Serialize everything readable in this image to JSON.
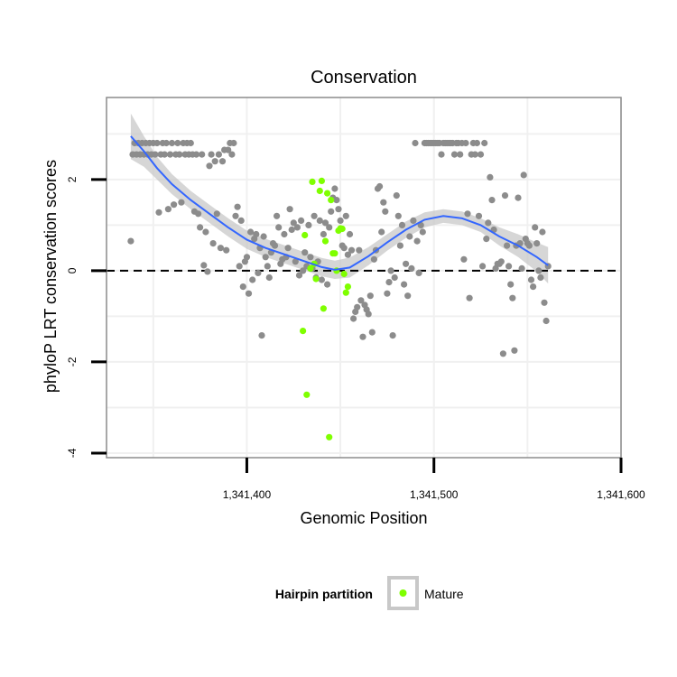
{
  "chart_data": {
    "type": "scatter",
    "title": "Conservation",
    "xlabel": "Genomic Position",
    "ylabel": "phyloP LRT conservation scores",
    "xlim": [
      1341325,
      1341600
    ],
    "ylim": [
      -4.1,
      3.8
    ],
    "x_ticks": [
      1341400,
      1341500,
      1341600
    ],
    "x_tick_labels": [
      "1,341,400",
      "1,341,500",
      "1,341,600"
    ],
    "y_ticks": [
      -4,
      -2,
      0,
      2
    ],
    "y_tick_labels": [
      "-4",
      "-2",
      "0",
      "2"
    ],
    "grid": true,
    "reference_line": {
      "y": 0,
      "style": "dashed"
    },
    "colors": {
      "other": "#8c8c8c",
      "mature": "#7fff00",
      "smooth": "#3366ff",
      "band": "#c8c8c8",
      "grid": "#f0f0f0",
      "panel_border": "#8c8c8c"
    },
    "legend": {
      "title": "Hairpin partition",
      "position": "bottom",
      "entries": [
        {
          "label": "Mature",
          "color": "#7fff00"
        }
      ]
    },
    "series": [
      {
        "group": "other",
        "points": [
          [
            1341338,
            0.65
          ],
          [
            1341339,
            2.55
          ],
          [
            1341340,
            2.8
          ],
          [
            1341341,
            2.55
          ],
          [
            1341342,
            2.8
          ],
          [
            1341343,
            2.55
          ],
          [
            1341344,
            2.8
          ],
          [
            1341345,
            2.55
          ],
          [
            1341346,
            2.8
          ],
          [
            1341347,
            2.55
          ],
          [
            1341348,
            2.8
          ],
          [
            1341349,
            2.55
          ],
          [
            1341350,
            2.8
          ],
          [
            1341351,
            2.55
          ],
          [
            1341352,
            2.8
          ],
          [
            1341353,
            1.28
          ],
          [
            1341354,
            2.55
          ],
          [
            1341355,
            2.8
          ],
          [
            1341356,
            2.55
          ],
          [
            1341357,
            2.8
          ],
          [
            1341358,
            1.35
          ],
          [
            1341359,
            2.55
          ],
          [
            1341360,
            2.8
          ],
          [
            1341361,
            1.45
          ],
          [
            1341362,
            2.55
          ],
          [
            1341363,
            2.8
          ],
          [
            1341364,
            2.55
          ],
          [
            1341365,
            1.5
          ],
          [
            1341366,
            2.8
          ],
          [
            1341367,
            2.55
          ],
          [
            1341368,
            2.8
          ],
          [
            1341369,
            2.55
          ],
          [
            1341370,
            2.8
          ],
          [
            1341371,
            2.55
          ],
          [
            1341372,
            1.3
          ],
          [
            1341373,
            2.55
          ],
          [
            1341374,
            1.25
          ],
          [
            1341375,
            0.95
          ],
          [
            1341376,
            2.55
          ],
          [
            1341377,
            0.12
          ],
          [
            1341378,
            0.85
          ],
          [
            1341379,
            -0.02
          ],
          [
            1341380,
            2.3
          ],
          [
            1341381,
            2.55
          ],
          [
            1341382,
            0.6
          ],
          [
            1341383,
            2.4
          ],
          [
            1341384,
            1.25
          ],
          [
            1341385,
            2.55
          ],
          [
            1341386,
            0.5
          ],
          [
            1341387,
            2.4
          ],
          [
            1341388,
            2.65
          ],
          [
            1341389,
            0.45
          ],
          [
            1341390,
            2.65
          ],
          [
            1341391,
            2.8
          ],
          [
            1341392,
            2.55
          ],
          [
            1341393,
            2.8
          ],
          [
            1341394,
            1.2
          ],
          [
            1341395,
            1.4
          ],
          [
            1341396,
            0.1
          ],
          [
            1341397,
            1.1
          ],
          [
            1341398,
            -0.35
          ],
          [
            1341399,
            0.2
          ],
          [
            1341400,
            0.3
          ],
          [
            1341401,
            -0.5
          ],
          [
            1341402,
            0.85
          ],
          [
            1341403,
            -0.2
          ],
          [
            1341404,
            0.7
          ],
          [
            1341405,
            0.8
          ],
          [
            1341406,
            -0.05
          ],
          [
            1341407,
            0.5
          ],
          [
            1341408,
            -1.42
          ],
          [
            1341409,
            0.75
          ],
          [
            1341410,
            0.3
          ],
          [
            1341411,
            0.1
          ],
          [
            1341412,
            -0.15
          ],
          [
            1341413,
            0.4
          ],
          [
            1341414,
            0.6
          ],
          [
            1341415,
            0.55
          ],
          [
            1341416,
            1.2
          ],
          [
            1341417,
            0.95
          ],
          [
            1341418,
            0.15
          ],
          [
            1341419,
            0.25
          ],
          [
            1341420,
            0.8
          ],
          [
            1341421,
            0.3
          ],
          [
            1341422,
            0.5
          ],
          [
            1341423,
            1.35
          ],
          [
            1341424,
            0.9
          ],
          [
            1341425,
            1.05
          ],
          [
            1341426,
            0.2
          ],
          [
            1341427,
            0.95
          ],
          [
            1341428,
            -0.1
          ],
          [
            1341429,
            1.1
          ],
          [
            1341430,
            0.0
          ],
          [
            1341431,
            0.4
          ],
          [
            1341432,
            0.1
          ],
          [
            1341433,
            1.0
          ],
          [
            1341434,
            0.3
          ],
          [
            1341435,
            0.05
          ],
          [
            1341436,
            1.2
          ],
          [
            1341437,
            -0.15
          ],
          [
            1341438,
            0.2
          ],
          [
            1341439,
            1.1
          ],
          [
            1341440,
            -0.2
          ],
          [
            1341441,
            0.8
          ],
          [
            1341442,
            1.05
          ],
          [
            1341443,
            -0.3
          ],
          [
            1341444,
            0.95
          ],
          [
            1341445,
            1.3
          ],
          [
            1341446,
            1.6
          ],
          [
            1341447,
            1.8
          ],
          [
            1341448,
            1.55
          ],
          [
            1341449,
            1.35
          ],
          [
            1341450,
            1.1
          ],
          [
            1341451,
            0.55
          ],
          [
            1341452,
            0.5
          ],
          [
            1341453,
            1.2
          ],
          [
            1341454,
            0.35
          ],
          [
            1341455,
            0.8
          ],
          [
            1341456,
            0.45
          ],
          [
            1341457,
            -1.05
          ],
          [
            1341458,
            -0.9
          ],
          [
            1341459,
            -0.8
          ],
          [
            1341460,
            0.45
          ],
          [
            1341461,
            -0.65
          ],
          [
            1341462,
            -1.45
          ],
          [
            1341463,
            -0.75
          ],
          [
            1341464,
            -0.85
          ],
          [
            1341465,
            -0.95
          ],
          [
            1341466,
            -0.55
          ],
          [
            1341467,
            -1.35
          ],
          [
            1341468,
            0.25
          ],
          [
            1341469,
            0.45
          ],
          [
            1341470,
            1.8
          ],
          [
            1341471,
            1.85
          ],
          [
            1341472,
            0.85
          ],
          [
            1341473,
            1.5
          ],
          [
            1341474,
            1.3
          ],
          [
            1341475,
            -0.5
          ],
          [
            1341476,
            -0.25
          ],
          [
            1341477,
            0.0
          ],
          [
            1341478,
            -1.42
          ],
          [
            1341479,
            -0.15
          ],
          [
            1341480,
            1.65
          ],
          [
            1341481,
            1.2
          ],
          [
            1341482,
            0.55
          ],
          [
            1341483,
            1.0
          ],
          [
            1341484,
            -0.3
          ],
          [
            1341485,
            0.15
          ],
          [
            1341486,
            -0.55
          ],
          [
            1341487,
            0.75
          ],
          [
            1341488,
            0.05
          ],
          [
            1341489,
            1.1
          ],
          [
            1341490,
            2.8
          ],
          [
            1341491,
            0.65
          ],
          [
            1341492,
            -0.05
          ],
          [
            1341493,
            1.0
          ],
          [
            1341494,
            0.85
          ],
          [
            1341495,
            2.8
          ],
          [
            1341496,
            2.8
          ],
          [
            1341497,
            2.8
          ],
          [
            1341498,
            2.8
          ],
          [
            1341499,
            2.8
          ],
          [
            1341500,
            2.8
          ],
          [
            1341501,
            2.8
          ],
          [
            1341502,
            2.8
          ],
          [
            1341503,
            2.8
          ],
          [
            1341504,
            2.55
          ],
          [
            1341505,
            2.8
          ],
          [
            1341506,
            2.8
          ],
          [
            1341507,
            2.8
          ],
          [
            1341508,
            2.8
          ],
          [
            1341509,
            2.8
          ],
          [
            1341510,
            2.8
          ],
          [
            1341511,
            2.55
          ],
          [
            1341512,
            2.8
          ],
          [
            1341513,
            2.8
          ],
          [
            1341514,
            2.55
          ],
          [
            1341515,
            2.8
          ],
          [
            1341516,
            0.25
          ],
          [
            1341517,
            2.8
          ],
          [
            1341518,
            1.25
          ],
          [
            1341519,
            -0.6
          ],
          [
            1341520,
            2.55
          ],
          [
            1341521,
            2.8
          ],
          [
            1341522,
            2.55
          ],
          [
            1341523,
            2.8
          ],
          [
            1341524,
            1.2
          ],
          [
            1341525,
            2.55
          ],
          [
            1341526,
            0.1
          ],
          [
            1341527,
            2.8
          ],
          [
            1341528,
            0.7
          ],
          [
            1341529,
            1.05
          ],
          [
            1341530,
            2.05
          ],
          [
            1341531,
            1.55
          ],
          [
            1341532,
            0.9
          ],
          [
            1341533,
            0.05
          ],
          [
            1341534,
            0.15
          ],
          [
            1341535,
            0.15
          ],
          [
            1341536,
            0.2
          ],
          [
            1341537,
            -1.82
          ],
          [
            1341538,
            1.65
          ],
          [
            1341539,
            0.55
          ],
          [
            1341540,
            0.1
          ],
          [
            1341541,
            -0.3
          ],
          [
            1341542,
            -0.6
          ],
          [
            1341543,
            -1.75
          ],
          [
            1341544,
            0.55
          ],
          [
            1341545,
            1.6
          ],
          [
            1341546,
            0.6
          ],
          [
            1341547,
            0.05
          ],
          [
            1341548,
            2.1
          ],
          [
            1341549,
            0.7
          ],
          [
            1341550,
            0.6
          ],
          [
            1341551,
            0.55
          ],
          [
            1341552,
            -0.2
          ],
          [
            1341553,
            -0.35
          ],
          [
            1341554,
            0.95
          ],
          [
            1341555,
            0.6
          ],
          [
            1341556,
            0.0
          ],
          [
            1341557,
            -0.15
          ],
          [
            1341558,
            0.85
          ],
          [
            1341559,
            -0.7
          ],
          [
            1341560,
            -1.1
          ],
          [
            1341561,
            0.1
          ]
        ]
      },
      {
        "group": "mature",
        "name": "Mature",
        "points": [
          [
            1341430,
            -1.32
          ],
          [
            1341431,
            0.78
          ],
          [
            1341432,
            -2.72
          ],
          [
            1341434,
            0.05
          ],
          [
            1341435,
            1.95
          ],
          [
            1341436,
            0.15
          ],
          [
            1341437,
            -0.18
          ],
          [
            1341439,
            1.75
          ],
          [
            1341440,
            1.97
          ],
          [
            1341441,
            -0.83
          ],
          [
            1341442,
            0.65
          ],
          [
            1341443,
            1.7
          ],
          [
            1341444,
            -3.65
          ],
          [
            1341445,
            1.55
          ],
          [
            1341446,
            0.38
          ],
          [
            1341447,
            0.38
          ],
          [
            1341448,
            0.0
          ],
          [
            1341449,
            0.88
          ],
          [
            1341450,
            0.93
          ],
          [
            1341451,
            0.92
          ],
          [
            1341452,
            -0.07
          ],
          [
            1341453,
            -0.48
          ],
          [
            1341454,
            -0.35
          ]
        ]
      }
    ],
    "smooth_line": {
      "x": [
        1341338,
        1341345,
        1341352,
        1341360,
        1341370,
        1341380,
        1341390,
        1341400,
        1341410,
        1341420,
        1341430,
        1341440,
        1341447,
        1341455,
        1341465,
        1341475,
        1341485,
        1341495,
        1341505,
        1341515,
        1341525,
        1341535,
        1341545,
        1341555,
        1341561
      ],
      "y": [
        2.95,
        2.62,
        2.25,
        1.9,
        1.55,
        1.25,
        0.95,
        0.68,
        0.5,
        0.36,
        0.22,
        0.08,
        0.02,
        0.07,
        0.32,
        0.62,
        0.9,
        1.12,
        1.2,
        1.15,
        1.0,
        0.75,
        0.55,
        0.3,
        0.12
      ],
      "band_upper": [
        3.45,
        2.95,
        2.5,
        2.12,
        1.75,
        1.45,
        1.15,
        0.88,
        0.7,
        0.56,
        0.42,
        0.28,
        0.22,
        0.29,
        0.52,
        0.8,
        1.08,
        1.28,
        1.35,
        1.3,
        1.15,
        0.95,
        0.8,
        0.62,
        0.52
      ],
      "band_lower": [
        2.45,
        2.28,
        2.0,
        1.68,
        1.35,
        1.05,
        0.75,
        0.48,
        0.3,
        0.16,
        0.02,
        -0.12,
        -0.18,
        -0.15,
        0.12,
        0.44,
        0.72,
        0.95,
        1.05,
        1.0,
        0.85,
        0.55,
        0.3,
        -0.02,
        -0.28
      ]
    }
  }
}
